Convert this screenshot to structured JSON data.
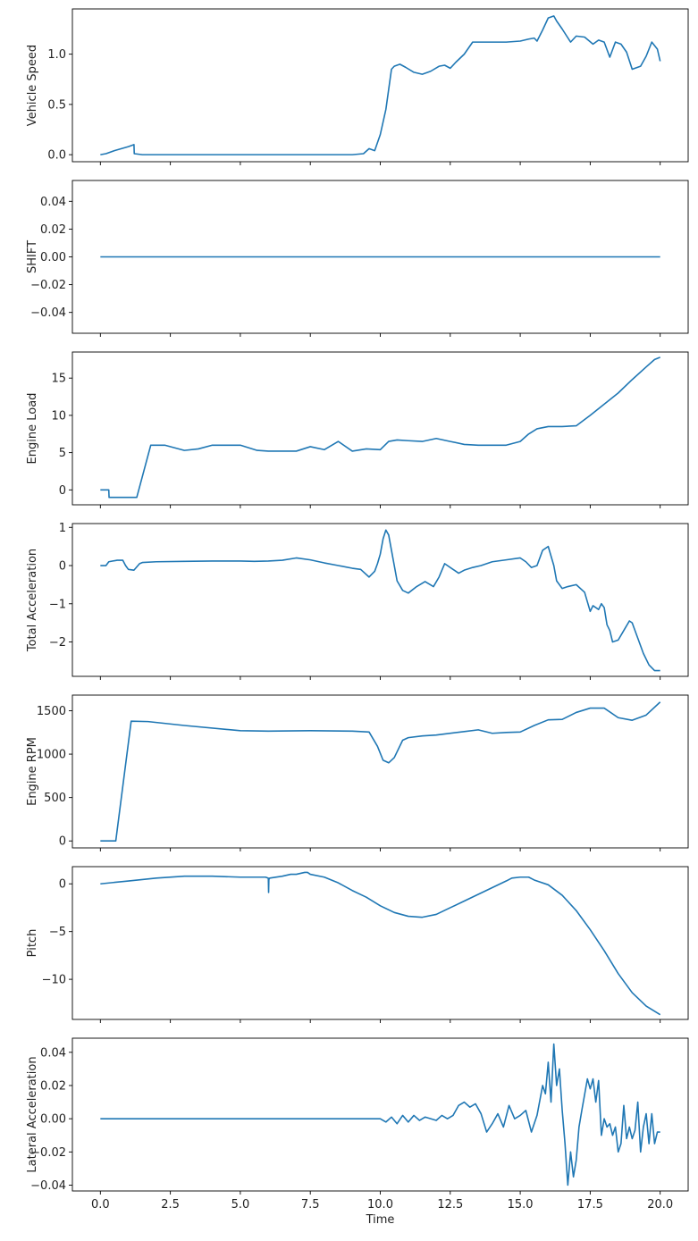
{
  "chart_data": [
    {
      "type": "line",
      "ylabel": "Vehicle Speed",
      "xlim": [
        -1.0,
        21.0
      ],
      "ylim": [
        -0.07,
        1.45
      ],
      "yticks": [
        "0.0",
        "0.5",
        "1.0"
      ],
      "line_color": "#1f77b4",
      "series": [
        {
          "x": [
            0.0,
            0.2,
            0.5,
            1.0,
            1.2,
            1.21,
            1.5,
            2.0,
            3.0,
            4.0,
            5.0,
            6.0,
            7.0,
            8.0,
            9.0,
            9.4,
            9.6,
            9.8,
            10.0,
            10.2,
            10.3,
            10.4,
            10.5,
            10.7,
            10.9,
            11.2,
            11.5,
            11.8,
            12.1,
            12.3,
            12.5,
            12.7,
            13.0,
            13.3,
            13.7,
            14.0,
            14.5,
            15.0,
            15.3,
            15.5,
            15.6,
            15.8,
            16.0,
            16.2,
            16.3,
            16.5,
            16.8,
            17.0,
            17.3,
            17.6,
            17.8,
            18.0,
            18.2,
            18.4,
            18.6,
            18.8,
            19.0,
            19.3,
            19.5,
            19.7,
            19.9,
            20.0
          ],
          "values": [
            0.0,
            0.01,
            0.04,
            0.08,
            0.1,
            0.01,
            0.0,
            0.0,
            0.0,
            0.0,
            0.0,
            0.0,
            0.0,
            0.0,
            0.0,
            0.01,
            0.06,
            0.04,
            0.2,
            0.45,
            0.65,
            0.85,
            0.88,
            0.9,
            0.87,
            0.82,
            0.8,
            0.83,
            0.88,
            0.89,
            0.86,
            0.92,
            1.0,
            1.12,
            1.12,
            1.12,
            1.12,
            1.13,
            1.15,
            1.16,
            1.13,
            1.24,
            1.36,
            1.38,
            1.33,
            1.25,
            1.12,
            1.18,
            1.17,
            1.1,
            1.14,
            1.12,
            0.97,
            1.12,
            1.1,
            1.02,
            0.85,
            0.88,
            0.98,
            1.12,
            1.05,
            0.93
          ]
        }
      ]
    },
    {
      "type": "line",
      "ylabel": "SHIFT",
      "xlim": [
        -1.0,
        21.0
      ],
      "ylim": [
        -0.055,
        0.055
      ],
      "yticks": [
        "0.04",
        "0.02",
        "0.00",
        "−0.02",
        "−0.04"
      ],
      "line_color": "#1f77b4",
      "series": [
        {
          "x": [
            0.0,
            20.0
          ],
          "values": [
            0.0,
            0.0
          ]
        }
      ]
    },
    {
      "type": "line",
      "ylabel": "Engine Load",
      "xlim": [
        -1.0,
        21.0
      ],
      "ylim": [
        -2.0,
        18.5
      ],
      "yticks": [
        "15",
        "10",
        "5",
        "0"
      ],
      "line_color": "#1f77b4",
      "series": [
        {
          "x": [
            0.0,
            0.3,
            0.31,
            1.0,
            1.3,
            1.8,
            2.3,
            3.0,
            3.5,
            4.0,
            5.0,
            5.6,
            6.0,
            6.5,
            7.0,
            7.5,
            8.0,
            8.5,
            9.0,
            9.5,
            10.0,
            10.3,
            10.6,
            11.0,
            11.5,
            12.0,
            12.5,
            13.0,
            13.5,
            14.0,
            14.5,
            15.0,
            15.3,
            15.6,
            16.0,
            16.5,
            17.0,
            17.5,
            18.0,
            18.5,
            19.0,
            19.5,
            19.8,
            20.0
          ],
          "values": [
            0.0,
            0.0,
            -1.0,
            -1.0,
            -1.0,
            6.0,
            6.0,
            5.3,
            5.5,
            6.0,
            6.0,
            5.3,
            5.2,
            5.2,
            5.2,
            5.8,
            5.4,
            6.5,
            5.2,
            5.5,
            5.4,
            6.5,
            6.7,
            6.6,
            6.5,
            6.9,
            6.5,
            6.1,
            6.0,
            6.0,
            6.0,
            6.5,
            7.5,
            8.2,
            8.5,
            8.5,
            8.6,
            10.0,
            11.5,
            13.0,
            14.8,
            16.5,
            17.5,
            17.8
          ]
        }
      ]
    },
    {
      "type": "line",
      "ylabel": "Total Acceleration",
      "xlim": [
        -1.0,
        21.0
      ],
      "ylim": [
        -2.9,
        1.1
      ],
      "yticks": [
        "1",
        "0",
        "−1",
        "−2"
      ],
      "line_color": "#1f77b4",
      "series": [
        {
          "x": [
            0.0,
            0.2,
            0.3,
            0.6,
            0.8,
            0.9,
            1.0,
            1.2,
            1.4,
            1.5,
            2.0,
            3.0,
            4.0,
            5.0,
            5.5,
            6.0,
            6.5,
            7.0,
            7.5,
            8.0,
            8.5,
            9.0,
            9.3,
            9.6,
            9.8,
            9.9,
            10.0,
            10.1,
            10.2,
            10.3,
            10.4,
            10.5,
            10.6,
            10.8,
            11.0,
            11.3,
            11.6,
            11.9,
            12.1,
            12.3,
            12.6,
            12.8,
            13.0,
            13.3,
            13.6,
            14.0,
            14.5,
            15.0,
            15.2,
            15.4,
            15.6,
            15.8,
            16.0,
            16.2,
            16.3,
            16.5,
            16.7,
            17.0,
            17.3,
            17.5,
            17.6,
            17.8,
            17.9,
            18.0,
            18.1,
            18.2,
            18.3,
            18.5,
            18.7,
            18.9,
            19.0,
            19.2,
            19.4,
            19.6,
            19.8,
            20.0
          ],
          "values": [
            0.0,
            0.0,
            0.1,
            0.14,
            0.14,
            0.0,
            -0.1,
            -0.12,
            0.05,
            0.08,
            0.1,
            0.11,
            0.12,
            0.12,
            0.11,
            0.12,
            0.14,
            0.2,
            0.15,
            0.07,
            0.0,
            -0.07,
            -0.1,
            -0.3,
            -0.15,
            0.05,
            0.3,
            0.7,
            0.93,
            0.8,
            0.4,
            0.0,
            -0.4,
            -0.65,
            -0.72,
            -0.55,
            -0.42,
            -0.55,
            -0.3,
            0.05,
            -0.1,
            -0.2,
            -0.12,
            -0.05,
            0.0,
            0.1,
            0.15,
            0.2,
            0.1,
            -0.05,
            0.0,
            0.4,
            0.5,
            0.0,
            -0.4,
            -0.6,
            -0.55,
            -0.5,
            -0.7,
            -1.2,
            -1.05,
            -1.15,
            -1.0,
            -1.1,
            -1.55,
            -1.7,
            -2.0,
            -1.95,
            -1.7,
            -1.45,
            -1.5,
            -1.9,
            -2.3,
            -2.6,
            -2.75,
            -2.75
          ]
        }
      ]
    },
    {
      "type": "line",
      "ylabel": "Engine RPM",
      "xlim": [
        -1.0,
        21.0
      ],
      "ylim": [
        -80.0,
        1680.0
      ],
      "yticks": [
        "1500",
        "1000",
        "500",
        "0"
      ],
      "line_color": "#1f77b4",
      "series": [
        {
          "x": [
            0.0,
            0.55,
            1.1,
            1.7,
            3.0,
            5.0,
            6.0,
            7.5,
            9.0,
            9.6,
            9.9,
            10.1,
            10.3,
            10.5,
            10.8,
            11.0,
            11.5,
            12.0,
            13.0,
            13.5,
            14.0,
            14.5,
            15.0,
            15.5,
            16.0,
            16.5,
            17.0,
            17.5,
            18.0,
            18.5,
            19.0,
            19.5,
            20.0
          ],
          "values": [
            0.0,
            0.0,
            1380.0,
            1375.0,
            1330.0,
            1270.0,
            1265.0,
            1270.0,
            1265.0,
            1255.0,
            1090.0,
            930.0,
            900.0,
            960.0,
            1160.0,
            1190.0,
            1210.0,
            1220.0,
            1260.0,
            1280.0,
            1240.0,
            1250.0,
            1255.0,
            1330.0,
            1395.0,
            1400.0,
            1480.0,
            1530.0,
            1530.0,
            1420.0,
            1390.0,
            1450.0,
            1600.0
          ]
        }
      ]
    },
    {
      "type": "line",
      "ylabel": "Pitch",
      "xlim": [
        -1.0,
        21.0
      ],
      "ylim": [
        -14.2,
        1.8
      ],
      "yticks": [
        "0",
        "−5",
        "−10"
      ],
      "line_color": "#1f77b4",
      "series": [
        {
          "x": [
            0.0,
            1.0,
            2.0,
            3.0,
            4.0,
            5.0,
            5.9,
            6.0,
            6.01,
            6.02,
            6.03,
            6.05,
            6.5,
            6.8,
            7.0,
            7.3,
            7.4,
            7.5,
            8.0,
            8.5,
            9.0,
            9.5,
            10.0,
            10.5,
            11.0,
            11.5,
            12.0,
            12.5,
            13.0,
            13.5,
            14.0,
            14.5,
            14.7,
            15.0,
            15.3,
            15.5,
            16.0,
            16.5,
            17.0,
            17.5,
            18.0,
            18.5,
            19.0,
            19.5,
            20.0
          ],
          "values": [
            0.0,
            0.3,
            0.6,
            0.8,
            0.8,
            0.7,
            0.7,
            0.6,
            -0.9,
            0.5,
            0.5,
            0.6,
            0.8,
            1.0,
            1.0,
            1.2,
            1.2,
            1.0,
            0.7,
            0.1,
            -0.7,
            -1.4,
            -2.3,
            -3.0,
            -3.4,
            -3.5,
            -3.2,
            -2.5,
            -1.8,
            -1.1,
            -0.4,
            0.3,
            0.6,
            0.7,
            0.7,
            0.4,
            -0.1,
            -1.2,
            -2.8,
            -4.8,
            -7.0,
            -9.4,
            -11.4,
            -12.8,
            -13.7
          ]
        }
      ]
    },
    {
      "type": "line",
      "ylabel": "Lateral Acceleration",
      "xlabel": "Time",
      "xlim": [
        -1.0,
        21.0
      ],
      "ylim": [
        -0.0435,
        0.0485
      ],
      "yticks": [
        "0.04",
        "0.02",
        "0.00",
        "−0.02",
        "−0.04"
      ],
      "xticks": [
        "0.0",
        "2.5",
        "5.0",
        "7.5",
        "10.0",
        "12.5",
        "15.0",
        "17.5",
        "20.0"
      ],
      "xtick_values": [
        0.0,
        2.5,
        5.0,
        7.5,
        10.0,
        12.5,
        15.0,
        17.5,
        20.0
      ],
      "line_color": "#1f77b4",
      "series": [
        {
          "x": [
            0.0,
            2.0,
            4.0,
            6.0,
            8.0,
            9.5,
            10.0,
            10.2,
            10.4,
            10.6,
            10.8,
            11.0,
            11.2,
            11.4,
            11.6,
            11.8,
            12.0,
            12.2,
            12.4,
            12.6,
            12.8,
            13.0,
            13.2,
            13.4,
            13.6,
            13.8,
            14.0,
            14.2,
            14.4,
            14.6,
            14.8,
            15.0,
            15.2,
            15.4,
            15.6,
            15.8,
            15.9,
            16.0,
            16.1,
            16.2,
            16.3,
            16.4,
            16.5,
            16.6,
            16.7,
            16.8,
            16.9,
            17.0,
            17.1,
            17.2,
            17.4,
            17.5,
            17.6,
            17.7,
            17.8,
            17.9,
            18.0,
            18.1,
            18.2,
            18.3,
            18.4,
            18.5,
            18.6,
            18.7,
            18.8,
            18.9,
            19.0,
            19.1,
            19.2,
            19.3,
            19.4,
            19.5,
            19.6,
            19.7,
            19.8,
            19.9,
            20.0
          ],
          "values": [
            0.0,
            0.0,
            0.0,
            0.0,
            0.0,
            0.0,
            0.0,
            -0.002,
            0.001,
            -0.003,
            0.002,
            -0.002,
            0.002,
            -0.001,
            0.001,
            0.0,
            -0.001,
            0.002,
            0.0,
            0.002,
            0.008,
            0.01,
            0.007,
            0.009,
            0.003,
            -0.008,
            -0.003,
            0.003,
            -0.005,
            0.008,
            0.0,
            0.002,
            0.005,
            -0.008,
            0.002,
            0.02,
            0.015,
            0.034,
            0.01,
            0.045,
            0.02,
            0.03,
            0.005,
            -0.015,
            -0.04,
            -0.02,
            -0.035,
            -0.025,
            -0.005,
            0.005,
            0.024,
            0.018,
            0.024,
            0.01,
            0.023,
            -0.01,
            0.0,
            -0.005,
            -0.003,
            -0.01,
            -0.005,
            -0.02,
            -0.015,
            0.008,
            -0.012,
            -0.005,
            -0.012,
            -0.007,
            0.01,
            -0.02,
            -0.005,
            0.003,
            -0.015,
            0.003,
            -0.015,
            -0.008,
            -0.008
          ]
        }
      ]
    }
  ]
}
